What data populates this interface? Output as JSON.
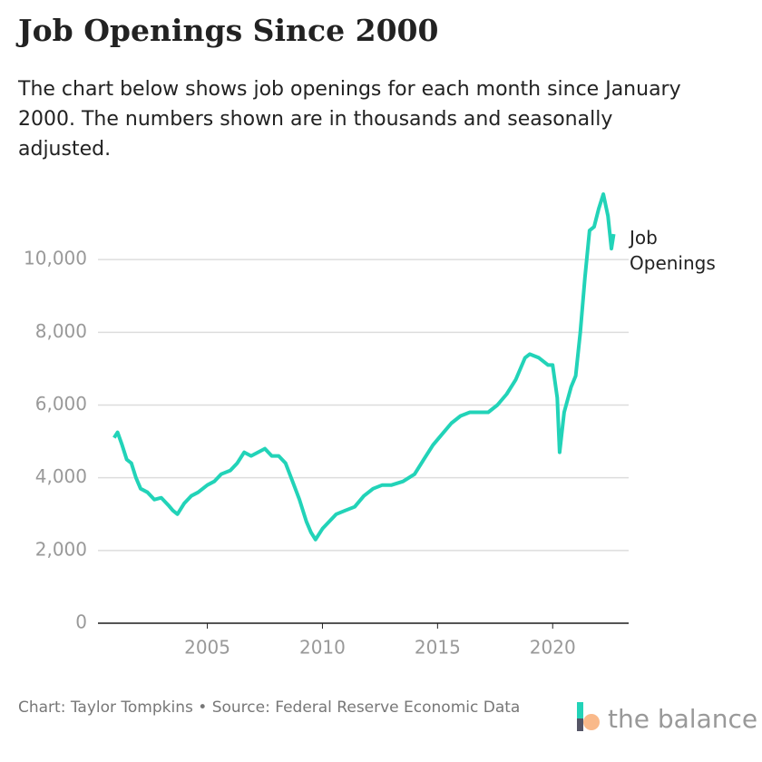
{
  "chart_data": {
    "type": "line",
    "title": "Job Openings Since 2000",
    "subtitle": "The chart below shows job openings for each month since January 2000. The numbers shown are in thousands and seasonally adjusted.",
    "source": "Chart: Taylor Tompkins • Source: Federal Reserve Economic Data",
    "brand": "the balance",
    "x": [
      2000.95,
      2001.1,
      2001.3,
      2001.5,
      2001.7,
      2001.9,
      2002.1,
      2002.4,
      2002.7,
      2003.0,
      2003.3,
      2003.5,
      2003.7,
      2004.0,
      2004.3,
      2004.6,
      2005.0,
      2005.3,
      2005.6,
      2006.0,
      2006.3,
      2006.6,
      2006.9,
      2007.2,
      2007.5,
      2007.8,
      2008.1,
      2008.4,
      2008.7,
      2009.0,
      2009.3,
      2009.5,
      2009.7,
      2010.0,
      2010.3,
      2010.6,
      2011.0,
      2011.4,
      2011.8,
      2012.2,
      2012.6,
      2013.0,
      2013.5,
      2014.0,
      2014.4,
      2014.8,
      2015.2,
      2015.6,
      2016.0,
      2016.4,
      2016.8,
      2017.2,
      2017.6,
      2018.0,
      2018.4,
      2018.8,
      2019.0,
      2019.4,
      2019.8,
      2020.0,
      2020.2,
      2020.3,
      2020.5,
      2020.8,
      2021.0,
      2021.2,
      2021.4,
      2021.6,
      2021.8,
      2022.0,
      2022.2,
      2022.4,
      2022.55,
      2022.65
    ],
    "series": [
      {
        "name": "Job Openings",
        "color": "#22d3b8",
        "values": [
          5100,
          5250,
          4900,
          4500,
          4400,
          4000,
          3700,
          3600,
          3400,
          3450,
          3250,
          3100,
          3000,
          3300,
          3500,
          3600,
          3800,
          3900,
          4100,
          4200,
          4400,
          4700,
          4600,
          4700,
          4800,
          4600,
          4600,
          4400,
          3900,
          3400,
          2800,
          2500,
          2300,
          2600,
          2800,
          3000,
          3100,
          3200,
          3500,
          3700,
          3800,
          3800,
          3900,
          4100,
          4500,
          4900,
          5200,
          5500,
          5700,
          5800,
          5800,
          5800,
          6000,
          6300,
          6700,
          7300,
          7400,
          7300,
          7100,
          7100,
          6200,
          4700,
          5800,
          6500,
          6800,
          8000,
          9500,
          10800,
          10900,
          11400,
          11800,
          11200,
          10300,
          10700
        ]
      }
    ],
    "xlim": [
      2000.25,
      2023.3
    ],
    "xticks": [
      2005,
      2010,
      2015,
      2020
    ],
    "ylim": [
      0,
      12000
    ],
    "yticks": [
      0,
      {
        "value": 2000,
        "label": "2,000"
      },
      {
        "value": 4000,
        "label": "4,000"
      },
      {
        "value": 6000,
        "label": "6,000"
      },
      {
        "value": 8000,
        "label": "8,000"
      },
      {
        "value": 10000,
        "label": "10,000"
      }
    ],
    "grid": true
  }
}
